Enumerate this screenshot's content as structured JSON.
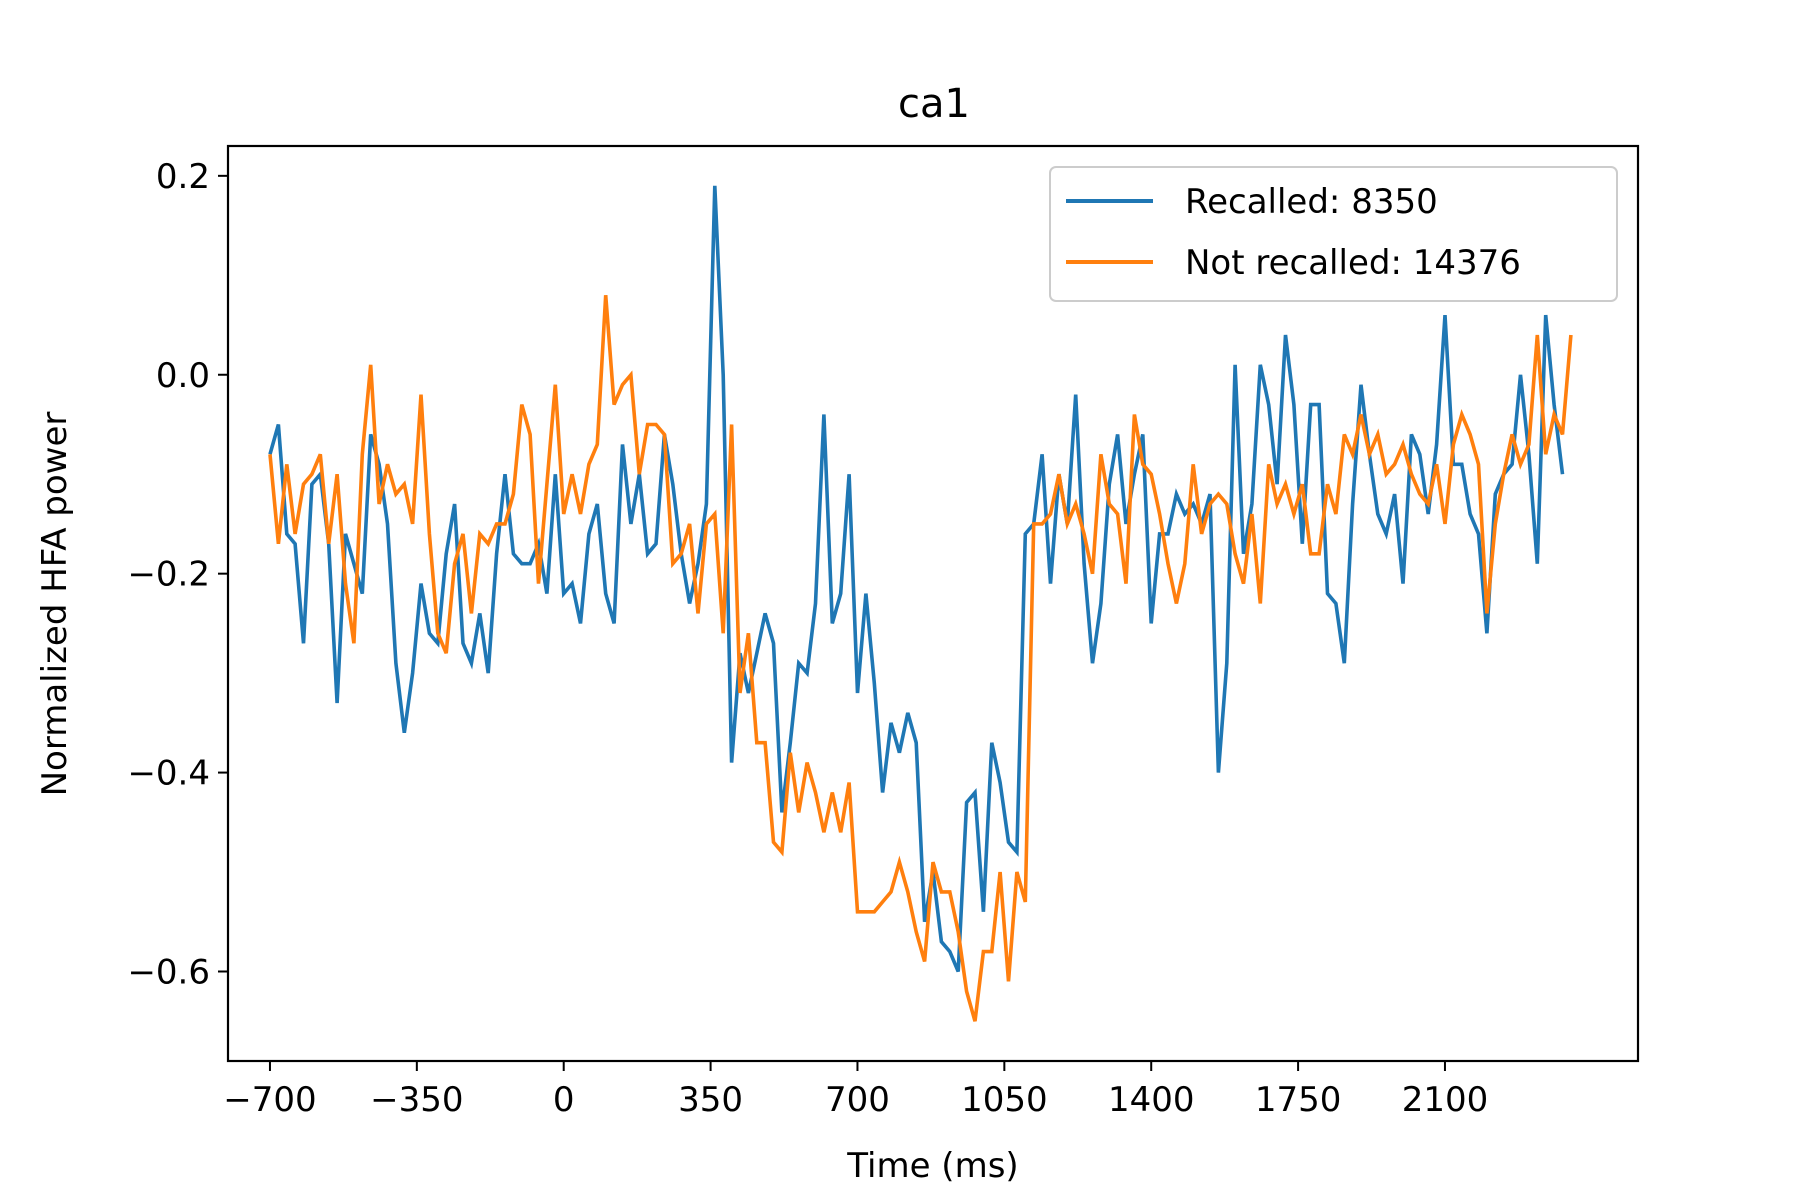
{
  "chart_data": {
    "type": "line",
    "title": "ca1",
    "xlabel": "Time (ms)",
    "ylabel": "Normalized HFA power",
    "xlim": [
      -800,
      2560
    ],
    "ylim": [
      -0.69,
      0.23
    ],
    "xticks": [
      -700,
      -350,
      0,
      350,
      700,
      1050,
      1400,
      1750,
      2100
    ],
    "xtick_labels": [
      "−700",
      "−350",
      "0",
      "350",
      "700",
      "1050",
      "1400",
      "1750",
      "2100"
    ],
    "yticks": [
      0.2,
      0.0,
      -0.2,
      -0.4,
      -0.6
    ],
    "ytick_labels": [
      "0.2",
      "0.0",
      "−0.2",
      "−0.4",
      "−0.6"
    ],
    "grid": false,
    "legend_position": "top-right",
    "x_start": -700,
    "x_step": 20,
    "series": [
      {
        "name": "Recalled: 8350",
        "color": "#1f77b4",
        "values": [
          -0.08,
          -0.05,
          -0.16,
          -0.17,
          -0.27,
          -0.11,
          -0.1,
          -0.17,
          -0.33,
          -0.16,
          -0.19,
          -0.22,
          -0.06,
          -0.09,
          -0.15,
          -0.29,
          -0.36,
          -0.3,
          -0.21,
          -0.26,
          -0.27,
          -0.18,
          -0.13,
          -0.27,
          -0.29,
          -0.24,
          -0.3,
          -0.18,
          -0.1,
          -0.18,
          -0.19,
          -0.19,
          -0.17,
          -0.22,
          -0.1,
          -0.22,
          -0.21,
          -0.25,
          -0.16,
          -0.13,
          -0.22,
          -0.25,
          -0.07,
          -0.15,
          -0.1,
          -0.18,
          -0.17,
          -0.06,
          -0.11,
          -0.18,
          -0.23,
          -0.19,
          -0.13,
          0.19,
          0.0,
          -0.39,
          -0.28,
          -0.32,
          -0.28,
          -0.24,
          -0.27,
          -0.44,
          -0.37,
          -0.29,
          -0.3,
          -0.23,
          -0.04,
          -0.25,
          -0.22,
          -0.1,
          -0.32,
          -0.22,
          -0.31,
          -0.42,
          -0.35,
          -0.38,
          -0.34,
          -0.37,
          -0.55,
          -0.5,
          -0.57,
          -0.58,
          -0.6,
          -0.43,
          -0.42,
          -0.54,
          -0.37,
          -0.41,
          -0.47,
          -0.48,
          -0.16,
          -0.15,
          -0.08,
          -0.21,
          -0.1,
          -0.15,
          -0.02,
          -0.19,
          -0.29,
          -0.23,
          -0.11,
          -0.06,
          -0.15,
          -0.1,
          -0.06,
          -0.25,
          -0.16,
          -0.16,
          -0.12,
          -0.14,
          -0.13,
          -0.15,
          -0.12,
          -0.4,
          -0.29,
          0.01,
          -0.18,
          -0.13,
          0.01,
          -0.03,
          -0.11,
          0.04,
          -0.03,
          -0.17,
          -0.03,
          -0.03,
          -0.22,
          -0.23,
          -0.29,
          -0.13,
          -0.01,
          -0.08,
          -0.14,
          -0.16,
          -0.12,
          -0.21,
          -0.06,
          -0.08,
          -0.14,
          -0.07,
          0.06,
          -0.09,
          -0.09,
          -0.14,
          -0.16,
          -0.26,
          -0.12,
          -0.1,
          -0.09,
          0.0,
          -0.08,
          -0.19,
          0.06,
          -0.03,
          -0.1
        ],
        "x_start_for_series": -700
      },
      {
        "name": "Not recalled: 14376",
        "color": "#ff7f0e",
        "values": [
          -0.08,
          -0.17,
          -0.09,
          -0.16,
          -0.11,
          -0.1,
          -0.08,
          -0.17,
          -0.1,
          -0.21,
          -0.27,
          -0.08,
          0.01,
          -0.13,
          -0.09,
          -0.12,
          -0.11,
          -0.15,
          -0.02,
          -0.16,
          -0.26,
          -0.28,
          -0.19,
          -0.16,
          -0.24,
          -0.16,
          -0.17,
          -0.15,
          -0.15,
          -0.12,
          -0.03,
          -0.06,
          -0.21,
          -0.11,
          -0.01,
          -0.14,
          -0.1,
          -0.14,
          -0.09,
          -0.07,
          0.08,
          -0.03,
          -0.01,
          0.0,
          -0.1,
          -0.05,
          -0.05,
          -0.06,
          -0.19,
          -0.18,
          -0.15,
          -0.24,
          -0.15,
          -0.14,
          -0.26,
          -0.05,
          -0.32,
          -0.26,
          -0.37,
          -0.37,
          -0.47,
          -0.48,
          -0.38,
          -0.44,
          -0.39,
          -0.42,
          -0.46,
          -0.42,
          -0.46,
          -0.41,
          -0.54,
          -0.54,
          -0.54,
          -0.53,
          -0.52,
          -0.49,
          -0.52,
          -0.56,
          -0.59,
          -0.49,
          -0.52,
          -0.52,
          -0.56,
          -0.62,
          -0.65,
          -0.58,
          -0.58,
          -0.5,
          -0.61,
          -0.5,
          -0.53,
          -0.15,
          -0.15,
          -0.14,
          -0.1,
          -0.15,
          -0.13,
          -0.16,
          -0.2,
          -0.08,
          -0.13,
          -0.14,
          -0.21,
          -0.04,
          -0.09,
          -0.1,
          -0.14,
          -0.19,
          -0.23,
          -0.19,
          -0.09,
          -0.16,
          -0.13,
          -0.12,
          -0.13,
          -0.18,
          -0.21,
          -0.14,
          -0.23,
          -0.09,
          -0.13,
          -0.11,
          -0.14,
          -0.11,
          -0.18,
          -0.18,
          -0.11,
          -0.14,
          -0.06,
          -0.08,
          -0.04,
          -0.08,
          -0.06,
          -0.1,
          -0.09,
          -0.07,
          -0.1,
          -0.12,
          -0.13,
          -0.09,
          -0.15,
          -0.07,
          -0.04,
          -0.06,
          -0.09,
          -0.24,
          -0.15,
          -0.1,
          -0.06,
          -0.09,
          -0.07,
          0.04,
          -0.08,
          -0.04,
          -0.06,
          0.04
        ]
      }
    ]
  },
  "colors": {
    "recalled": "#1f77b4",
    "not_recalled": "#ff7f0e"
  }
}
